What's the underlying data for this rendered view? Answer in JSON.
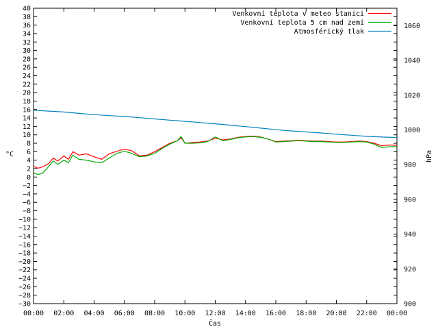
{
  "chart_data": {
    "type": "line",
    "xlabel": "Čas",
    "ylabel": "°C",
    "y2label": "hPa",
    "x_ticks": [
      "00:00",
      "02:00",
      "04:00",
      "06:00",
      "08:00",
      "10:00",
      "12:00",
      "14:00",
      "16:00",
      "18:00",
      "20:00",
      "22:00",
      "00:00"
    ],
    "x_range_hours": [
      0,
      24
    ],
    "ylim": [
      -30,
      40
    ],
    "y_tick_step": 2,
    "y2lim": [
      900,
      1070
    ],
    "y2_ticks": [
      900,
      920,
      940,
      960,
      980,
      1000,
      1020,
      1040,
      1060
    ],
    "legend_position": "top-right",
    "grid": false,
    "series": [
      {
        "name": "Venkovní teplota v meteo stanici",
        "axis": "y",
        "color": "#ff0000",
        "points": [
          [
            0,
            2.5
          ],
          [
            0.3,
            2.1
          ],
          [
            0.6,
            2.4
          ],
          [
            1.0,
            3.2
          ],
          [
            1.3,
            4.5
          ],
          [
            1.6,
            3.8
          ],
          [
            2.0,
            5.0
          ],
          [
            2.3,
            4.2
          ],
          [
            2.6,
            6.0
          ],
          [
            3.0,
            5.2
          ],
          [
            3.5,
            5.5
          ],
          [
            4.0,
            4.8
          ],
          [
            4.5,
            4.2
          ],
          [
            5.0,
            5.5
          ],
          [
            5.5,
            6.1
          ],
          [
            6.0,
            6.6
          ],
          [
            6.5,
            6.2
          ],
          [
            7.0,
            5.0
          ],
          [
            7.5,
            5.2
          ],
          [
            8.0,
            6.0
          ],
          [
            8.5,
            7.0
          ],
          [
            9.0,
            8.0
          ],
          [
            9.5,
            8.6
          ],
          [
            9.75,
            9.3
          ],
          [
            10.0,
            8.0
          ],
          [
            10.5,
            8.2
          ],
          [
            11.0,
            8.3
          ],
          [
            11.5,
            8.5
          ],
          [
            12.0,
            9.2
          ],
          [
            12.5,
            8.8
          ],
          [
            13.0,
            9.0
          ],
          [
            13.5,
            9.4
          ],
          [
            14.0,
            9.6
          ],
          [
            14.5,
            9.7
          ],
          [
            15.0,
            9.5
          ],
          [
            15.5,
            9.0
          ],
          [
            16.0,
            8.4
          ],
          [
            16.5,
            8.5
          ],
          [
            17.0,
            8.6
          ],
          [
            17.5,
            8.7
          ],
          [
            18.0,
            8.6
          ],
          [
            18.5,
            8.5
          ],
          [
            19.0,
            8.5
          ],
          [
            19.5,
            8.4
          ],
          [
            20.0,
            8.3
          ],
          [
            20.5,
            8.3
          ],
          [
            21.0,
            8.4
          ],
          [
            21.5,
            8.5
          ],
          [
            22.0,
            8.4
          ],
          [
            22.5,
            8.0
          ],
          [
            23.0,
            7.4
          ],
          [
            23.5,
            7.6
          ],
          [
            24.0,
            7.5
          ]
        ]
      },
      {
        "name": "Venkovní teplota 5 cm nad zemí",
        "axis": "y",
        "color": "#00aa00",
        "points": [
          [
            0,
            1.0
          ],
          [
            0.3,
            0.6
          ],
          [
            0.6,
            0.9
          ],
          [
            1.0,
            2.5
          ],
          [
            1.3,
            3.8
          ],
          [
            1.6,
            3.0
          ],
          [
            2.0,
            4.0
          ],
          [
            2.3,
            3.4
          ],
          [
            2.6,
            5.2
          ],
          [
            3.0,
            4.2
          ],
          [
            3.5,
            4.0
          ],
          [
            4.0,
            3.6
          ],
          [
            4.5,
            3.4
          ],
          [
            5.0,
            4.5
          ],
          [
            5.5,
            5.6
          ],
          [
            6.0,
            6.1
          ],
          [
            6.5,
            5.6
          ],
          [
            7.0,
            4.8
          ],
          [
            7.5,
            5.0
          ],
          [
            8.0,
            5.6
          ],
          [
            8.5,
            6.8
          ],
          [
            9.0,
            7.8
          ],
          [
            9.5,
            8.6
          ],
          [
            9.75,
            9.6
          ],
          [
            10.0,
            8.0
          ],
          [
            10.5,
            8.0
          ],
          [
            11.0,
            8.1
          ],
          [
            11.5,
            8.4
          ],
          [
            12.0,
            9.5
          ],
          [
            12.5,
            8.6
          ],
          [
            13.0,
            8.9
          ],
          [
            13.5,
            9.3
          ],
          [
            14.0,
            9.5
          ],
          [
            14.5,
            9.6
          ],
          [
            15.0,
            9.4
          ],
          [
            15.5,
            9.0
          ],
          [
            16.0,
            8.3
          ],
          [
            16.5,
            8.4
          ],
          [
            17.0,
            8.5
          ],
          [
            17.5,
            8.6
          ],
          [
            18.0,
            8.5
          ],
          [
            18.5,
            8.4
          ],
          [
            19.0,
            8.4
          ],
          [
            19.5,
            8.3
          ],
          [
            20.0,
            8.2
          ],
          [
            20.5,
            8.2
          ],
          [
            21.0,
            8.3
          ],
          [
            21.5,
            8.4
          ],
          [
            22.0,
            8.3
          ],
          [
            22.5,
            7.8
          ],
          [
            23.0,
            7.0
          ],
          [
            23.5,
            7.2
          ],
          [
            24.0,
            7.2
          ]
        ]
      },
      {
        "name": "Atmosférický tlak",
        "axis": "y2",
        "color": "#0080c0",
        "points": [
          [
            0,
            1011.3
          ],
          [
            1,
            1010.8
          ],
          [
            2,
            1010.3
          ],
          [
            3,
            1009.5
          ],
          [
            4,
            1008.8
          ],
          [
            5,
            1008.2
          ],
          [
            6,
            1007.7
          ],
          [
            7,
            1007.0
          ],
          [
            8,
            1006.3
          ],
          [
            9,
            1005.6
          ],
          [
            10,
            1004.9
          ],
          [
            11,
            1004.2
          ],
          [
            12,
            1003.5
          ],
          [
            13,
            1002.7
          ],
          [
            14,
            1001.9
          ],
          [
            15,
            1001.0
          ],
          [
            16,
            1000.1
          ],
          [
            17,
            999.4
          ],
          [
            18,
            998.8
          ],
          [
            19,
            998.2
          ],
          [
            20,
            997.5
          ],
          [
            21,
            996.9
          ],
          [
            22,
            996.3
          ],
          [
            23,
            995.9
          ],
          [
            24,
            995.6
          ]
        ]
      }
    ]
  }
}
